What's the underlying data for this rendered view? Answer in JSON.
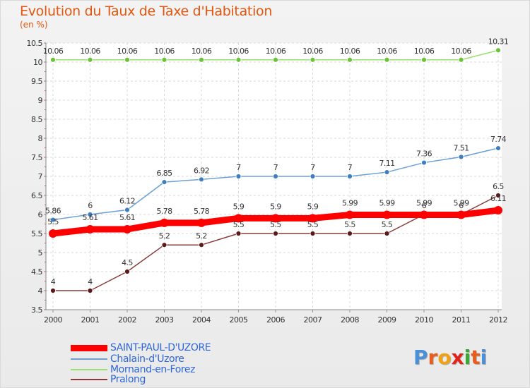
{
  "title": "Evolution du Taux de Taxe d'Habitation",
  "subtitle": "(en %)",
  "logo": "Proxiti",
  "chart_data": {
    "type": "line",
    "x": [
      "2000",
      "2001",
      "2002",
      "2003",
      "2004",
      "2005",
      "2006",
      "2007",
      "2008",
      "2009",
      "2010",
      "2011",
      "2012"
    ],
    "ylim": [
      3.5,
      10.5
    ],
    "yticks": [
      "3.5",
      "4",
      "4.5",
      "5",
      "5.5",
      "6",
      "6.5",
      "7",
      "7.5",
      "8",
      "8.5",
      "9",
      "9.5",
      "10",
      "10.5"
    ],
    "legend_position": "bottom-left",
    "grid": true,
    "series": [
      {
        "name": "SAINT-PAUL-D'UZORE",
        "color": "#ff0000",
        "marker_color": "#ff0000",
        "values": [
          5.5,
          5.61,
          5.61,
          5.78,
          5.78,
          5.9,
          5.9,
          5.9,
          5.99,
          5.99,
          5.99,
          5.99,
          6.11
        ],
        "labels": [
          "5.5",
          "5.61",
          "5.61",
          "5.78",
          "5.78",
          "5.9",
          "5.9",
          "5.9",
          "5.99",
          "5.99",
          "5.99",
          "5.99",
          "6.11"
        ]
      },
      {
        "name": "Chalain-d'Uzore",
        "color": "#6b9fd6",
        "marker_color": "#3f7fc0",
        "values": [
          5.86,
          6,
          6.12,
          6.85,
          6.92,
          7,
          7,
          7,
          7,
          7.11,
          7.36,
          7.51,
          7.74
        ],
        "labels": [
          "5.86",
          "6",
          "6.12",
          "6.85",
          "6.92",
          "7",
          "7",
          "7",
          "7",
          "7.11",
          "7.36",
          "7.51",
          "7.74"
        ]
      },
      {
        "name": "Mornand-en-Forez",
        "color": "#9adf6f",
        "marker_color": "#6cc23a",
        "values": [
          10.06,
          10.06,
          10.06,
          10.06,
          10.06,
          10.06,
          10.06,
          10.06,
          10.06,
          10.06,
          10.06,
          10.06,
          10.31
        ],
        "labels": [
          "10.06",
          "10.06",
          "10.06",
          "10.06",
          "10.06",
          "10.06",
          "10.06",
          "10.06",
          "10.06",
          "10.06",
          "10.06",
          "10.06",
          "10.31"
        ]
      },
      {
        "name": "Pralong",
        "color": "#8a3a3a",
        "marker_color": "#5a1a1a",
        "values": [
          4,
          4,
          4.5,
          5.2,
          5.2,
          5.5,
          5.5,
          5.5,
          5.5,
          5.5,
          6,
          6,
          6.5
        ],
        "labels": [
          "4",
          "4",
          "4.5",
          "5.2",
          "5.2",
          "5.5",
          "5.5",
          "5.5",
          "5.5",
          "5.5",
          "6",
          "6",
          "6.5"
        ]
      }
    ]
  }
}
